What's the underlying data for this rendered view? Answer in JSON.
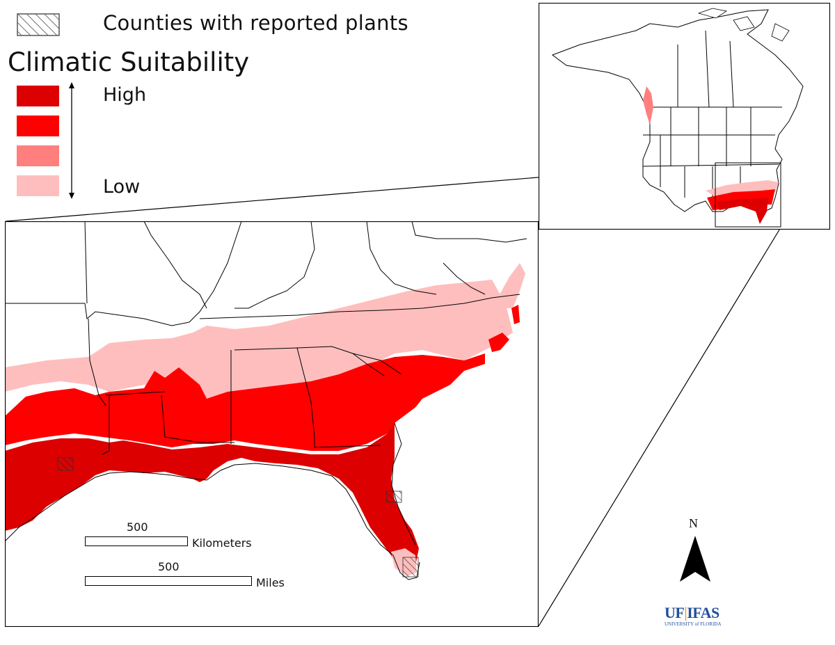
{
  "legend": {
    "hatch_label": "Counties with reported plants",
    "title": "Climatic Suitability",
    "high_label": "High",
    "low_label": "Low",
    "classes": [
      {
        "level": "high",
        "color": "#dc0000"
      },
      {
        "level": "medium-high",
        "color": "#ff0000"
      },
      {
        "level": "medium-low",
        "color": "#ff7f7f"
      },
      {
        "level": "low",
        "color": "#ffbebe"
      }
    ]
  },
  "scale_bars": {
    "km_value": "500",
    "km_unit": "Kilometers",
    "mi_value": "500",
    "mi_unit": "Miles"
  },
  "north_arrow": {
    "label": "N"
  },
  "logo": {
    "uf": "UF",
    "ifas": "IFAS",
    "sub": "UNIVERSITY of FLORIDA"
  },
  "colors": {
    "high": "#dc0000",
    "medium_high": "#ff0000",
    "medium_low": "#ff7f7f",
    "low": "#ffbebe",
    "boundary": "#000000",
    "logo_blue": "#1f4e9c"
  }
}
